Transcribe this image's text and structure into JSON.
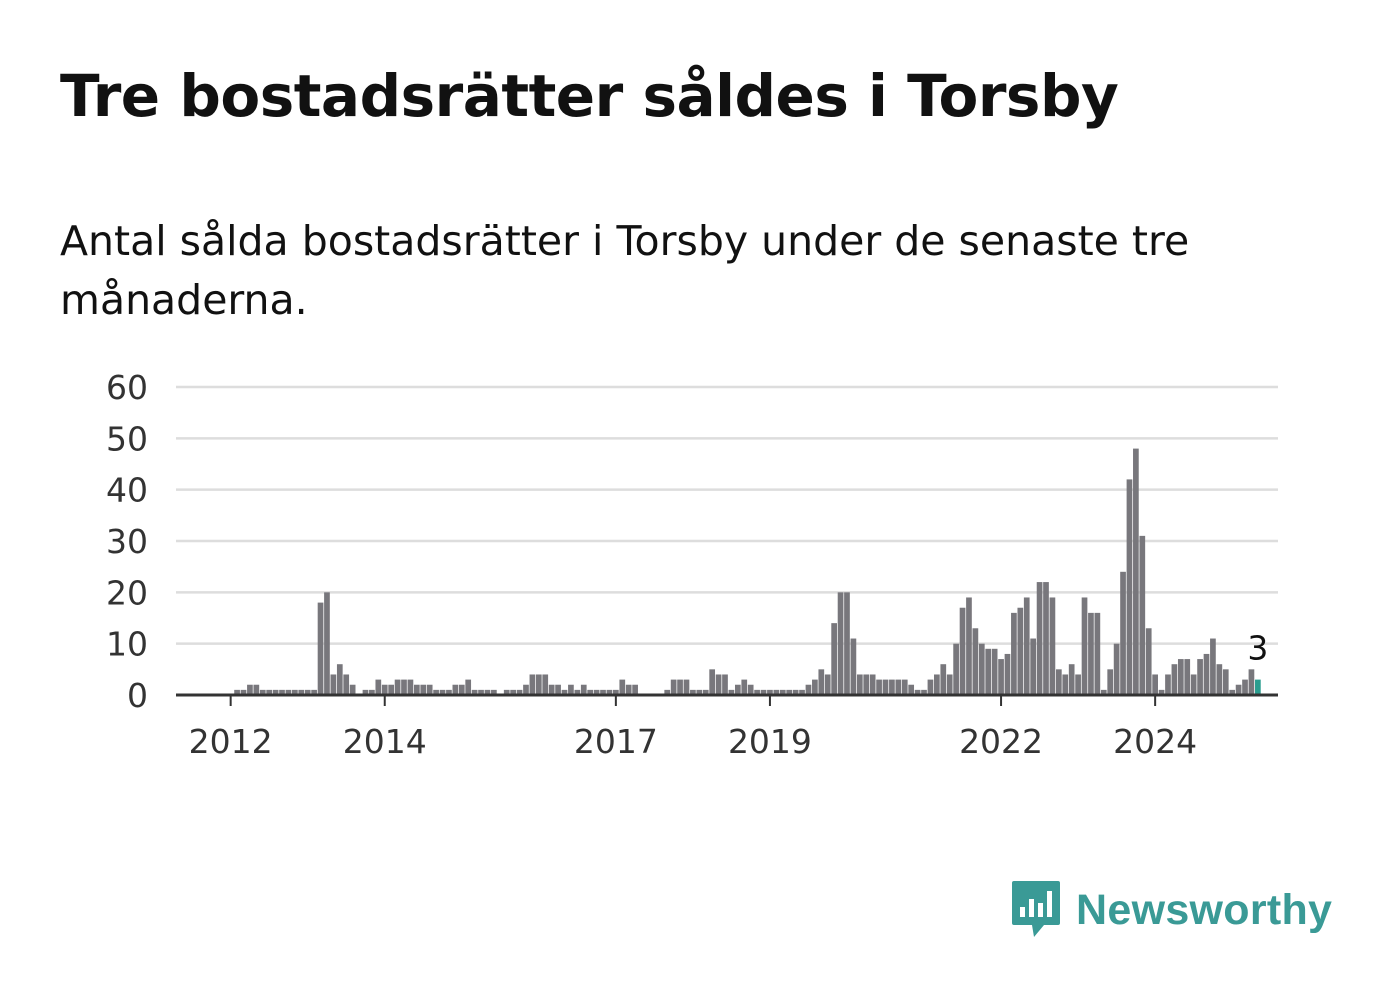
{
  "title": "Tre bostadsrätter såldes i Torsby",
  "subtitle": "Antal sålda bostadsrätter i Torsby under de senaste tre månaderna.",
  "brand": {
    "name": "Newsworthy",
    "color": "#3a9a96",
    "icon": "newsworthy-logo-icon"
  },
  "colors": {
    "bar": "#78777c",
    "highlight": "#2a9d8f",
    "grid": "#dddddd",
    "baseline": "#333333"
  },
  "chart_data": {
    "type": "bar",
    "title": "Tre bostadsrätter såldes i Torsby",
    "xlabel": "",
    "ylabel": "",
    "ylim": [
      0,
      60
    ],
    "yticks": [
      0,
      10,
      20,
      30,
      40,
      50,
      60
    ],
    "grid": true,
    "legend": "none",
    "x_start": "2011-10",
    "x_ticks": [
      {
        "label": "2012",
        "index": 3
      },
      {
        "label": "2014",
        "index": 27
      },
      {
        "label": "2017",
        "index": 63
      },
      {
        "label": "2019",
        "index": 87
      },
      {
        "label": "2022",
        "index": 123
      },
      {
        "label": "2024",
        "index": 147
      }
    ],
    "values": [
      0,
      0,
      0,
      0,
      1,
      1,
      2,
      2,
      1,
      1,
      1,
      1,
      1,
      1,
      1,
      1,
      1,
      18,
      20,
      4,
      6,
      4,
      2,
      0,
      1,
      1,
      3,
      2,
      2,
      3,
      3,
      3,
      2,
      2,
      2,
      1,
      1,
      1,
      2,
      2,
      3,
      1,
      1,
      1,
      1,
      0,
      1,
      1,
      1,
      2,
      4,
      4,
      4,
      2,
      2,
      1,
      2,
      1,
      2,
      1,
      1,
      1,
      1,
      1,
      3,
      2,
      2,
      0,
      0,
      0,
      0,
      1,
      3,
      3,
      3,
      1,
      1,
      1,
      5,
      4,
      4,
      1,
      2,
      3,
      2,
      1,
      1,
      1,
      1,
      1,
      1,
      1,
      1,
      2,
      3,
      5,
      4,
      14,
      20,
      20,
      11,
      4,
      4,
      4,
      3,
      3,
      3,
      3,
      3,
      2,
      1,
      1,
      3,
      4,
      6,
      4,
      10,
      17,
      19,
      13,
      10,
      9,
      9,
      7,
      8,
      16,
      17,
      19,
      11,
      22,
      22,
      19,
      5,
      4,
      6,
      4,
      19,
      16,
      16,
      1,
      5,
      10,
      24,
      42,
      48,
      31,
      13,
      4,
      1,
      4,
      6,
      7,
      7,
      4,
      7,
      8,
      11,
      6,
      5,
      1,
      2,
      3,
      5,
      3
    ],
    "highlight_last": true,
    "annotations": [
      {
        "label": "3",
        "value": 3
      }
    ]
  }
}
